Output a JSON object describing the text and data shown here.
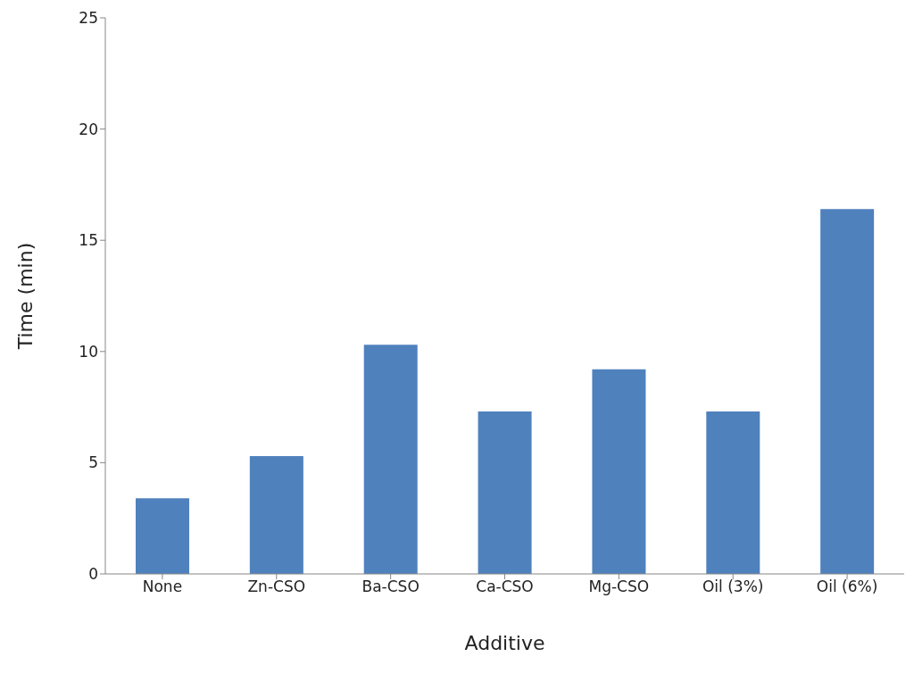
{
  "chart_data": {
    "type": "bar",
    "xlabel": "Additive",
    "ylabel": "Time (min)",
    "categories": [
      "None",
      "Zn-CSO",
      "Ba-CSO",
      "Ca-CSO",
      "Mg-CSO",
      "Oil (3%)",
      "Oil (6%)"
    ],
    "values": [
      3.4,
      5.3,
      10.3,
      7.3,
      9.2,
      7.3,
      16.4
    ],
    "color": "#4f81bd",
    "ylim": [
      0,
      25
    ],
    "yticks": [
      0,
      5,
      10,
      15,
      20,
      25
    ],
    "grid": false,
    "legend": false
  }
}
